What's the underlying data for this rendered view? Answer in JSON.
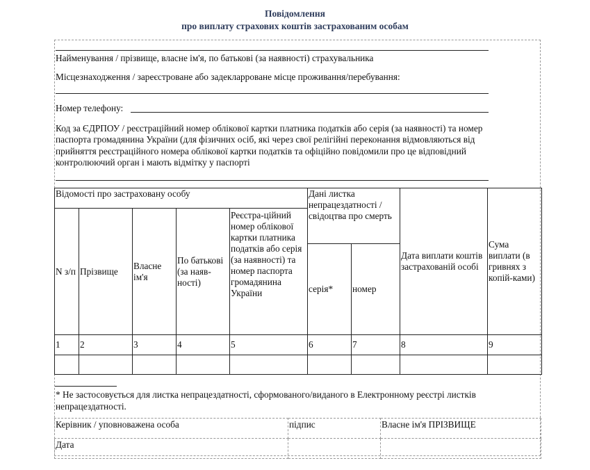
{
  "title": {
    "line1": "Повідомлення",
    "line2": "про виплату страхових коштів застрахованим особам"
  },
  "fields": {
    "insurer_name": "Найменування / прізвище, власне ім'я, по батькові (за наявності) страхувальника",
    "location": "Місцезнаходження / зареєстроване або задекларроване місце проживання/перебування:",
    "phone": "Номер телефону:",
    "code_lines": [
      "Код за ЄДРПОУ / реєстраційний номер облікової картки платника податків або серія (за наявності) та номер",
      "паспорта громадянина України (для фізичних осіб, які через свої релігійні переконання відмовляються від",
      "прийняття реєстраційного номера облікової картки податків та офіційно повідомили про це відповідний",
      "контролюючий орган і мають відмітку у паспорті"
    ]
  },
  "table": {
    "group1": "Відомості про застраховану особу",
    "group2": "Дані листка непрацездатності / свідоцтва про смерть",
    "headers": [
      "N з/п",
      "Прізвище",
      "Власне ім'я",
      "По батькові (за наяв-ності)",
      "Реєстра-ційний номер облікової картки платника податків або серія (за наявності) та номер паспорта громадянина України",
      "серія*",
      "номер",
      "Дата виплати коштів застрахованій особі",
      "Сума виплати (в гривнях з копій-ками)"
    ],
    "numbers": [
      "1",
      "2",
      "3",
      "4",
      "5",
      "6",
      "7",
      "8",
      "9"
    ]
  },
  "footnote": "* Не застосовується для листка непрацездатності, сформованого/виданого в Електронному реєстрі листків непрацездатності.",
  "signature": {
    "head": "Керівник / уповноважена особа",
    "sign": "підпис",
    "name": "Власне ім'я ПРІЗВИЩЕ",
    "date": "Дата"
  }
}
